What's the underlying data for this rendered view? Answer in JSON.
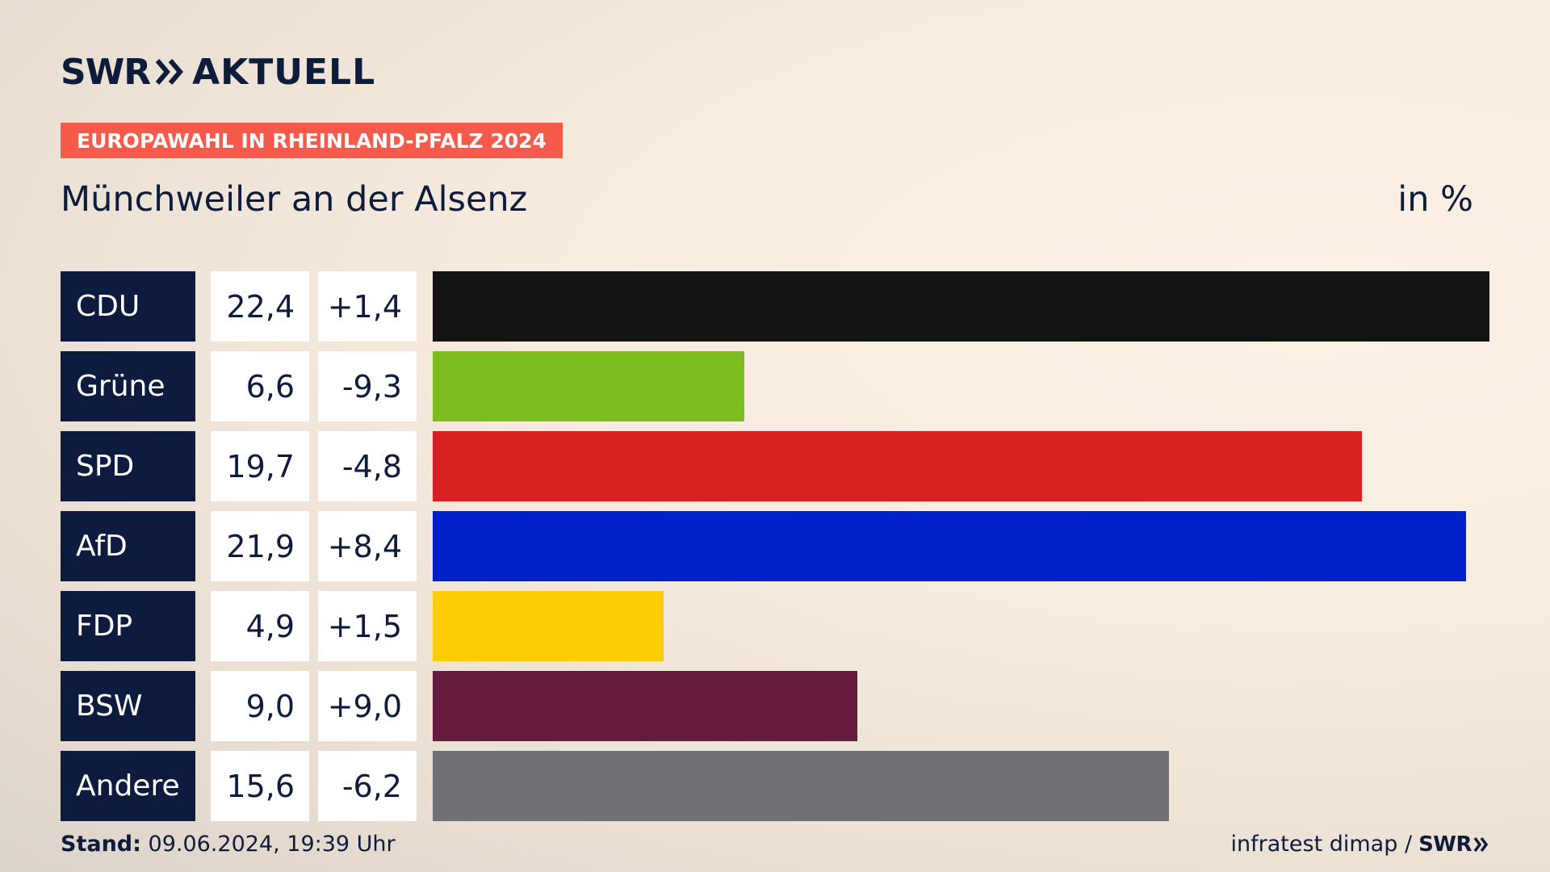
{
  "brand": {
    "swr": "SWR",
    "aktuell": "AKTUELL"
  },
  "tag": "EUROPAWAHL IN RHEINLAND-PFALZ 2024",
  "subtitle": "Münchweiler an der Alsenz",
  "unit": "in %",
  "footer": {
    "stand_label": "Stand:",
    "stand_value": "09.06.2024, 19:39 Uhr",
    "source": "infratest dimap /",
    "source_brand": "SWR"
  },
  "chart_data": {
    "type": "bar",
    "orientation": "horizontal",
    "title": "Münchweiler an der Alsenz",
    "unit": "in %",
    "categories": [
      "CDU",
      "Grüne",
      "SPD",
      "AfD",
      "FDP",
      "BSW",
      "Andere"
    ],
    "values": [
      22.4,
      6.6,
      19.7,
      21.9,
      4.9,
      9.0,
      15.6
    ],
    "value_labels": [
      "22,4",
      "6,6",
      "19,7",
      "21,9",
      "4,9",
      "9,0",
      "15,6"
    ],
    "diff_labels": [
      "+1,4",
      "-9,3",
      "-4,8",
      "+8,4",
      "+1,5",
      "+9,0",
      "-6,2"
    ],
    "diffs": [
      1.4,
      -9.3,
      -4.8,
      8.4,
      1.5,
      9.0,
      -6.2
    ],
    "colors": [
      "#141414",
      "#7bbd1f",
      "#d72020",
      "#0021c9",
      "#ffcd07",
      "#661a3e",
      "#707174"
    ]
  }
}
